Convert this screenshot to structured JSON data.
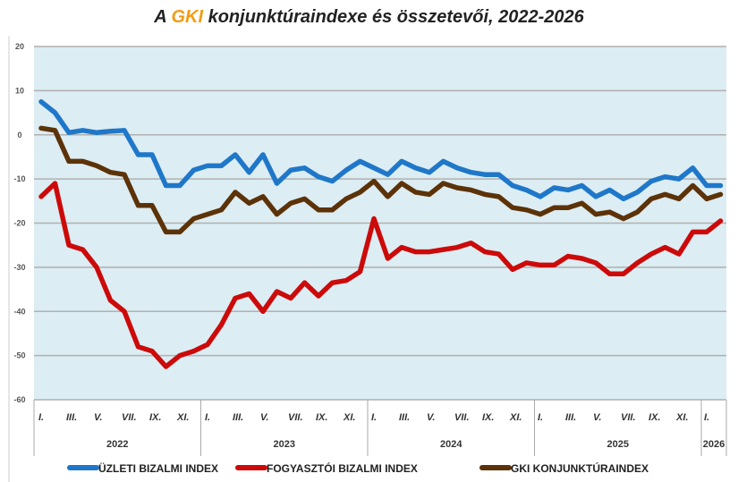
{
  "chart_data": {
    "type": "line",
    "title_prefix": "A ",
    "title_highlight": "GKI",
    "title_suffix": " konjunktúraindexe és összetevői, 2022-2026",
    "ylim": [
      -60,
      20
    ],
    "yticks": [
      20,
      10,
      0,
      -10,
      -20,
      -30,
      -40,
      -50,
      -60
    ],
    "grid": true,
    "legend_position": "bottom",
    "month_labels": [
      "I.",
      "III.",
      "V.",
      "VII.",
      "IX.",
      "XI."
    ],
    "years": [
      "2022",
      "2023",
      "2024",
      "2025",
      "2026"
    ],
    "x_start": "2022-01",
    "x_end": "2026-02",
    "colors": {
      "plot_bg": "#dcedf3",
      "grid": "#b0b0b0"
    },
    "series": [
      {
        "name": "Üzleti bizalmi index",
        "color": "#1f77c9",
        "values": [
          7.5,
          5,
          0.5,
          1,
          0.5,
          0.8,
          1,
          -4.5,
          -4.5,
          -11.5,
          -11.5,
          -8,
          -7,
          -7,
          -4.5,
          -8.5,
          -4.5,
          -11,
          -8,
          -7.5,
          -9.5,
          -10.5,
          -8,
          -6,
          -7.5,
          -9,
          -6,
          -7.5,
          -8.5,
          -6,
          -7.5,
          -8.5,
          -9,
          -9,
          -11.5,
          -12.5,
          -14,
          -12,
          -12.5,
          -11.5,
          -14,
          -12.5,
          -14.5,
          -13,
          -10.5,
          -9.5,
          -10,
          -7.5,
          -11.5,
          -11.5
        ]
      },
      {
        "name": "Fogyasztói bizalmi index",
        "color": "#cc0a0a",
        "values": [
          -14,
          -11,
          -25,
          -26,
          -30,
          -37.5,
          -40,
          -48,
          -49,
          -52.5,
          -50,
          -49,
          -47.5,
          -43,
          -37,
          -36,
          -40,
          -35.5,
          -37,
          -33.5,
          -36.5,
          -33.5,
          -33,
          -31,
          -19,
          -28,
          -25.5,
          -26.5,
          -26.5,
          -26,
          -25.5,
          -24.5,
          -26.5,
          -27,
          -30.5,
          -29,
          -29.5,
          -29.5,
          -27.5,
          -28,
          -29,
          -31.5,
          -31.5,
          -29,
          -27,
          -25.5,
          -27,
          -22,
          -22,
          -19.5
        ]
      },
      {
        "name": "GKI konjunktúraindex",
        "color": "#5c3208",
        "values": [
          1.5,
          1,
          -6,
          -6,
          -7,
          -8.5,
          -9,
          -16,
          -16,
          -22,
          -22,
          -19,
          -18,
          -17,
          -13,
          -15.5,
          -14,
          -18,
          -15.5,
          -14.5,
          -17,
          -17,
          -14.5,
          -13,
          -10.5,
          -14,
          -11,
          -13,
          -13.5,
          -11,
          -12,
          -12.5,
          -13.5,
          -14,
          -16.5,
          -17,
          -18,
          -16.5,
          -16.5,
          -15.5,
          -18,
          -17.5,
          -19,
          -17.5,
          -14.5,
          -13.5,
          -14.5,
          -11.5,
          -14.5,
          -13.5
        ]
      }
    ]
  }
}
